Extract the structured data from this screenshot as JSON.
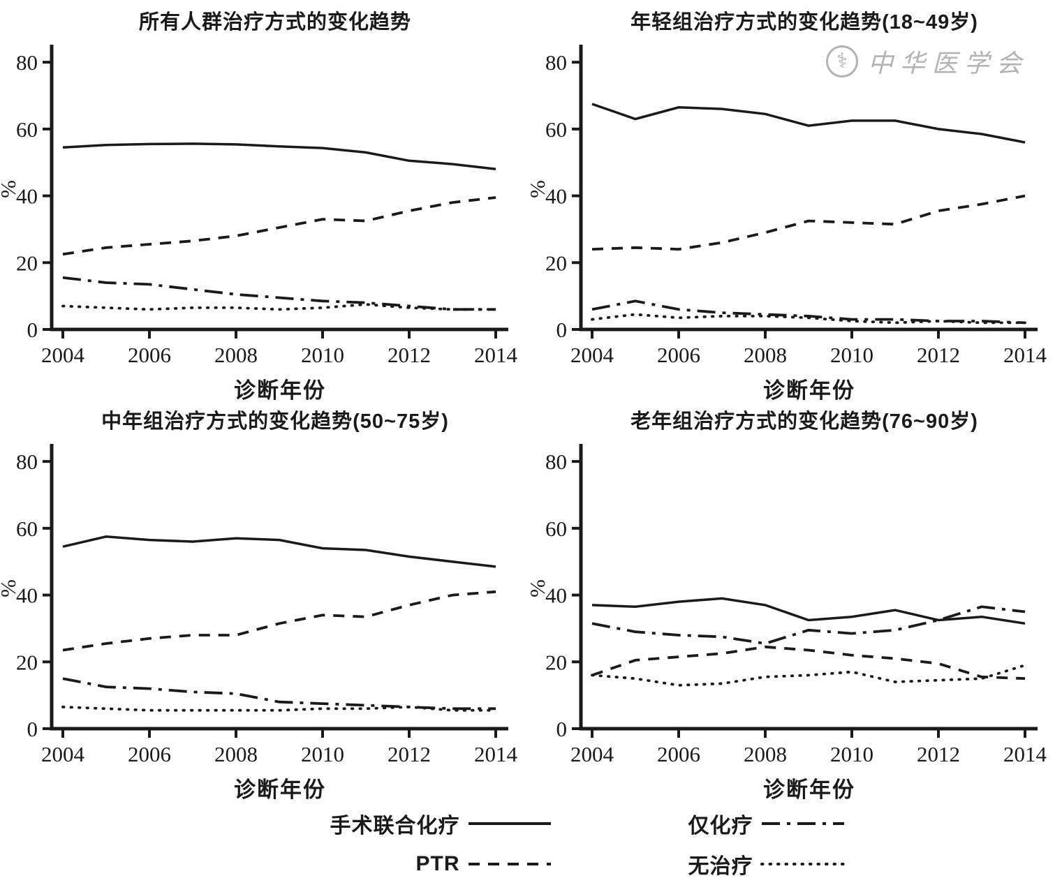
{
  "watermark": {
    "text": "中华医学会",
    "symbol": "medical-emblem-icon"
  },
  "legend": {
    "items": [
      {
        "label": "手术联合化疗",
        "style": "solid"
      },
      {
        "label": "仅化疗",
        "style": "dashdot"
      },
      {
        "label": "PTR",
        "style": "dashed"
      },
      {
        "label": "无治疗",
        "style": "dotted"
      }
    ]
  },
  "colors": {
    "line": "#1a1a1a"
  },
  "chart_data": [
    {
      "type": "line",
      "title": "所有人群治疗方式的变化趋势",
      "xlabel": "诊断年份",
      "ylabel": "%",
      "x": [
        2004,
        2005,
        2006,
        2007,
        2008,
        2009,
        2010,
        2011,
        2012,
        2013,
        2014
      ],
      "xticks": [
        2004,
        2006,
        2008,
        2010,
        2012,
        2014
      ],
      "yticks": [
        0,
        20,
        40,
        60,
        80
      ],
      "ylim": [
        0,
        84
      ],
      "legend_position": "none",
      "grid": false,
      "series": [
        {
          "name": "手术联合化疗",
          "style": "solid",
          "values": [
            54.5,
            55.2,
            55.5,
            55.6,
            55.4,
            54.8,
            54.3,
            53.0,
            50.5,
            49.5,
            48.0
          ]
        },
        {
          "name": "PTR",
          "style": "dashed",
          "values": [
            22.5,
            24.5,
            25.5,
            26.5,
            28.0,
            30.5,
            33.0,
            32.5,
            35.5,
            38.0,
            39.5
          ]
        },
        {
          "name": "仅化疗",
          "style": "dashdot",
          "values": [
            15.5,
            14.0,
            13.5,
            12.0,
            10.5,
            9.5,
            8.5,
            8.0,
            7.0,
            6.0,
            6.0
          ]
        },
        {
          "name": "无治疗",
          "style": "dotted",
          "values": [
            7.0,
            6.5,
            6.0,
            6.5,
            6.5,
            6.0,
            6.5,
            7.5,
            6.5,
            6.0,
            6.0
          ]
        }
      ]
    },
    {
      "type": "line",
      "title": "年轻组治疗方式的变化趋势(18~49岁)",
      "xlabel": "诊断年份",
      "ylabel": "%",
      "x": [
        2004,
        2005,
        2006,
        2007,
        2008,
        2009,
        2010,
        2011,
        2012,
        2013,
        2014
      ],
      "xticks": [
        2004,
        2006,
        2008,
        2010,
        2012,
        2014
      ],
      "yticks": [
        0,
        20,
        40,
        60,
        80
      ],
      "ylim": [
        0,
        84
      ],
      "legend_position": "none",
      "grid": false,
      "series": [
        {
          "name": "手术联合化疗",
          "style": "solid",
          "values": [
            67.5,
            63.0,
            66.5,
            66.0,
            64.5,
            61.0,
            62.5,
            62.5,
            60.0,
            58.5,
            56.0
          ]
        },
        {
          "name": "PTR",
          "style": "dashed",
          "values": [
            24.0,
            24.5,
            24.0,
            26.0,
            29.0,
            32.5,
            32.0,
            31.5,
            35.5,
            37.5,
            40.0
          ]
        },
        {
          "name": "仅化疗",
          "style": "dashdot",
          "values": [
            6.0,
            8.5,
            6.0,
            5.0,
            4.5,
            4.0,
            3.0,
            3.0,
            2.5,
            2.5,
            2.0
          ]
        },
        {
          "name": "无治疗",
          "style": "dotted",
          "values": [
            3.0,
            4.5,
            3.5,
            4.0,
            4.0,
            3.5,
            2.5,
            2.0,
            2.5,
            2.0,
            2.0
          ]
        }
      ]
    },
    {
      "type": "line",
      "title": "中年组治疗方式的变化趋势(50~75岁)",
      "xlabel": "诊断年份",
      "ylabel": "%",
      "x": [
        2004,
        2005,
        2006,
        2007,
        2008,
        2009,
        2010,
        2011,
        2012,
        2013,
        2014
      ],
      "xticks": [
        2004,
        2006,
        2008,
        2010,
        2012,
        2014
      ],
      "yticks": [
        0,
        20,
        40,
        60,
        80
      ],
      "ylim": [
        0,
        84
      ],
      "legend_position": "none",
      "grid": false,
      "series": [
        {
          "name": "手术联合化疗",
          "style": "solid",
          "values": [
            54.5,
            57.5,
            56.5,
            56.0,
            57.0,
            56.5,
            54.0,
            53.5,
            51.5,
            50.0,
            48.5
          ]
        },
        {
          "name": "PTR",
          "style": "dashed",
          "values": [
            23.5,
            25.5,
            27.0,
            28.0,
            28.0,
            31.5,
            34.0,
            33.5,
            37.0,
            40.0,
            41.0
          ]
        },
        {
          "name": "仅化疗",
          "style": "dashdot",
          "values": [
            15.0,
            12.5,
            12.0,
            11.0,
            10.5,
            8.0,
            7.5,
            7.0,
            6.5,
            6.0,
            6.0
          ]
        },
        {
          "name": "无治疗",
          "style": "dotted",
          "values": [
            6.5,
            6.0,
            5.5,
            5.5,
            5.5,
            5.5,
            6.0,
            6.0,
            6.5,
            5.5,
            5.5
          ]
        }
      ]
    },
    {
      "type": "line",
      "title": "老年组治疗方式的变化趋势(76~90岁)",
      "xlabel": "诊断年份",
      "ylabel": "%",
      "x": [
        2004,
        2005,
        2006,
        2007,
        2008,
        2009,
        2010,
        2011,
        2012,
        2013,
        2014
      ],
      "xticks": [
        2004,
        2006,
        2008,
        2010,
        2012,
        2014
      ],
      "yticks": [
        0,
        20,
        40,
        60,
        80
      ],
      "ylim": [
        0,
        84
      ],
      "legend_position": "none",
      "grid": false,
      "series": [
        {
          "name": "手术联合化疗",
          "style": "solid",
          "values": [
            37.0,
            36.5,
            38.0,
            39.0,
            37.0,
            32.5,
            33.5,
            35.5,
            32.5,
            33.5,
            31.5
          ]
        },
        {
          "name": "仅化疗",
          "style": "dashdot",
          "values": [
            31.5,
            29.0,
            28.0,
            27.5,
            25.5,
            29.5,
            28.5,
            29.5,
            32.5,
            36.5,
            35.0
          ]
        },
        {
          "name": "PTR",
          "style": "dashed",
          "values": [
            16.0,
            20.5,
            21.5,
            22.5,
            24.5,
            23.5,
            22.0,
            21.0,
            19.5,
            15.5,
            15.0
          ]
        },
        {
          "name": "无治疗",
          "style": "dotted",
          "values": [
            16.0,
            15.0,
            13.0,
            13.5,
            15.5,
            16.0,
            17.0,
            14.0,
            14.5,
            15.0,
            19.0
          ]
        }
      ]
    }
  ]
}
